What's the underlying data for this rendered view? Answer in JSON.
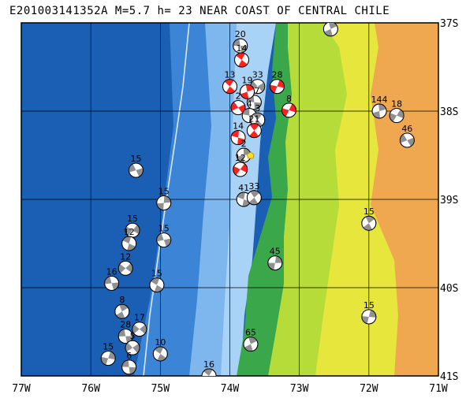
{
  "title": "E201003141352A  M=5.7  h= 23  NEAR COAST OF CENTRAL CHILE",
  "lon_labels": [
    "77W",
    "76W",
    "75W",
    "74W",
    "73W",
    "72W",
    "71W"
  ],
  "lat_labels": [
    "37S",
    "38S",
    "39S",
    "40S",
    "41S"
  ],
  "colors": {
    "deep_ocean": "#1a5fb4",
    "mid_ocean": "#3c84d6",
    "shelf": "#7eb6ee",
    "coast_shelf": "#a9d2f7",
    "lowland": "#3aa84a",
    "hills": "#b6dc3a",
    "plateau": "#e6e63c",
    "mountains": "#f0a850",
    "focal_red": "#ff2020",
    "focal_gray": "#909090"
  },
  "mechanisms": [
    {
      "label": "20",
      "lon": -73.85,
      "lat": -37.26,
      "fill": "gray"
    },
    {
      "label": "14",
      "lon": -73.83,
      "lat": -37.42,
      "fill": "red"
    },
    {
      "label": "8",
      "lon": -72.55,
      "lat": -37.07,
      "fill": "gray"
    },
    {
      "label": "28",
      "lon": -73.32,
      "lat": -37.72,
      "fill": "red"
    },
    {
      "label": "33",
      "lon": -73.6,
      "lat": -37.72,
      "fill": "gray"
    },
    {
      "label": "27",
      "lon": -73.65,
      "lat": -37.9,
      "fill": "gray"
    },
    {
      "label": "13",
      "lon": -74.0,
      "lat": -37.72,
      "fill": "red"
    },
    {
      "label": "19",
      "lon": -73.75,
      "lat": -37.78,
      "fill": "red"
    },
    {
      "label": "8",
      "lon": -73.15,
      "lat": -37.99,
      "fill": "red"
    },
    {
      "label": "2",
      "lon": -73.88,
      "lat": -37.96,
      "fill": "red"
    },
    {
      "label": "4",
      "lon": -73.72,
      "lat": -38.05,
      "fill": "gray"
    },
    {
      "label": "3",
      "lon": -73.6,
      "lat": -38.1,
      "fill": "gray"
    },
    {
      "label": "144",
      "lon": -71.85,
      "lat": -38.0,
      "fill": "gray"
    },
    {
      "label": "18",
      "lon": -71.6,
      "lat": -38.05,
      "fill": "gray"
    },
    {
      "label": "46",
      "lon": -71.45,
      "lat": -38.33,
      "fill": "gray"
    },
    {
      "label": "14",
      "lon": -73.88,
      "lat": -38.3,
      "fill": "red"
    },
    {
      "label": "21",
      "lon": -73.65,
      "lat": -38.22,
      "fill": "red"
    },
    {
      "label": "2",
      "lon": -73.8,
      "lat": -38.5,
      "fill": "gray"
    },
    {
      "label": "12",
      "lon": -73.85,
      "lat": -38.66,
      "fill": "red"
    },
    {
      "label": "15",
      "lon": -75.35,
      "lat": -38.67,
      "fill": "gray"
    },
    {
      "label": "41",
      "lon": -73.8,
      "lat": -39.0,
      "fill": "gray"
    },
    {
      "label": "33",
      "lon": -73.65,
      "lat": -38.98,
      "fill": "gray"
    },
    {
      "label": "15",
      "lon": -74.95,
      "lat": -39.04,
      "fill": "gray"
    },
    {
      "label": "15",
      "lon": -75.4,
      "lat": -39.35,
      "fill": "gray"
    },
    {
      "label": "15",
      "lon": -74.95,
      "lat": -39.46,
      "fill": "gray"
    },
    {
      "label": "12",
      "lon": -75.45,
      "lat": -39.5,
      "fill": "gray"
    },
    {
      "label": "15",
      "lon": -72.0,
      "lat": -39.27,
      "fill": "gray"
    },
    {
      "label": "45",
      "lon": -73.35,
      "lat": -39.72,
      "fill": "gray"
    },
    {
      "label": "12",
      "lon": -75.5,
      "lat": -39.78,
      "fill": "gray"
    },
    {
      "label": "16",
      "lon": -75.7,
      "lat": -39.95,
      "fill": "gray"
    },
    {
      "label": "15",
      "lon": -75.05,
      "lat": -39.97,
      "fill": "gray"
    },
    {
      "label": "8",
      "lon": -75.55,
      "lat": -40.27,
      "fill": "gray"
    },
    {
      "label": "15",
      "lon": -72.0,
      "lat": -40.33,
      "fill": "gray"
    },
    {
      "label": "17",
      "lon": -75.3,
      "lat": -40.47,
      "fill": "gray"
    },
    {
      "label": "28",
      "lon": -75.5,
      "lat": -40.55,
      "fill": "gray"
    },
    {
      "label": "10",
      "lon": -75.0,
      "lat": -40.75,
      "fill": "gray"
    },
    {
      "label": "65",
      "lon": -73.7,
      "lat": -40.64,
      "fill": "gray"
    },
    {
      "label": "15",
      "lon": -75.75,
      "lat": -40.8,
      "fill": "gray"
    },
    {
      "label": "5",
      "lon": -75.4,
      "lat": -40.68,
      "fill": "gray"
    },
    {
      "label": "6",
      "lon": -75.45,
      "lat": -40.9,
      "fill": "gray"
    },
    {
      "label": "16",
      "lon": -74.3,
      "lat": -41.0,
      "fill": "gray"
    }
  ]
}
